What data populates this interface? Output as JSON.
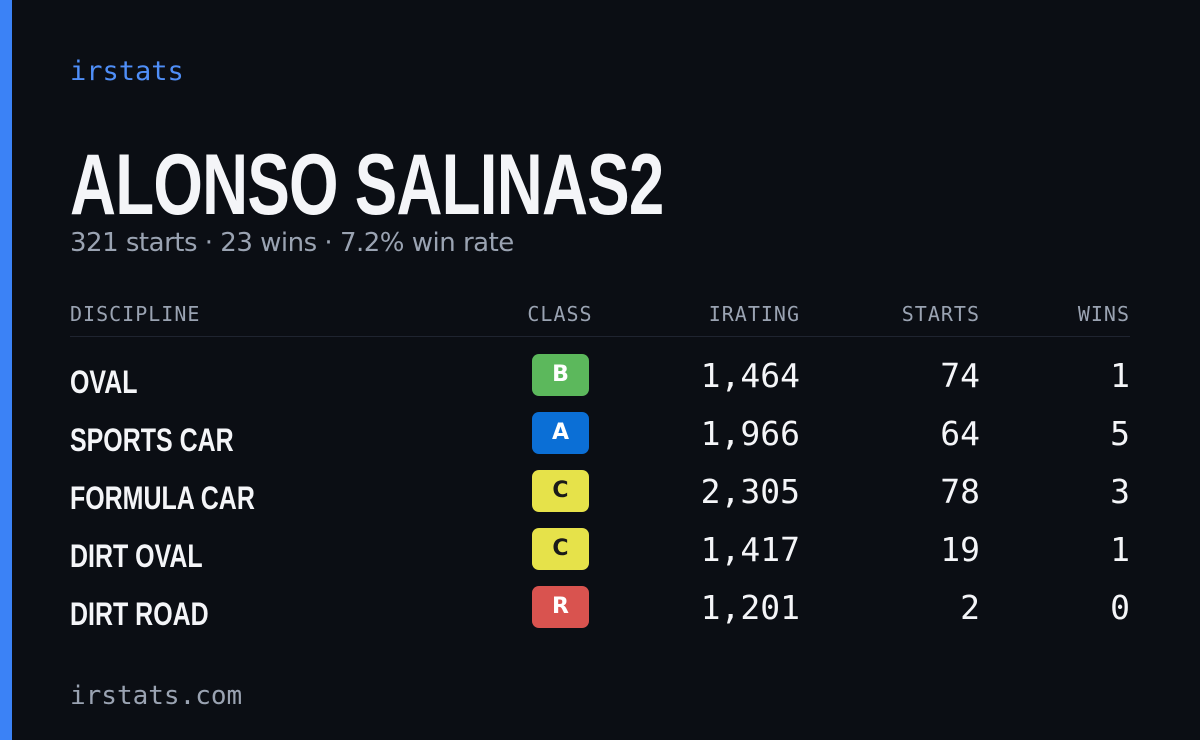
{
  "header": {
    "brand": "irstats",
    "title": "ALONSO SALINAS2",
    "subtitle": "321 starts · 23 wins · 7.2% win rate"
  },
  "table": {
    "columns": [
      "DISCIPLINE",
      "CLASS",
      "IRATING",
      "STARTS",
      "WINS"
    ],
    "rows": [
      {
        "discipline": "OVAL",
        "class": "B",
        "class_color": "#5cb85c",
        "irating": "1,464",
        "starts": "74",
        "wins": "1"
      },
      {
        "discipline": "SPORTS CAR",
        "class": "A",
        "class_color": "#0b6fd6",
        "irating": "1,966",
        "starts": "64",
        "wins": "5"
      },
      {
        "discipline": "FORMULA CAR",
        "class": "C",
        "class_color": "#e6e24a",
        "irating": "2,305",
        "starts": "78",
        "wins": "3"
      },
      {
        "discipline": "DIRT OVAL",
        "class": "C",
        "class_color": "#e6e24a",
        "irating": "1,417",
        "starts": "19",
        "wins": "1"
      },
      {
        "discipline": "DIRT ROAD",
        "class": "R",
        "class_color": "#d9534f",
        "irating": "1,201",
        "starts": "2",
        "wins": "0"
      }
    ]
  },
  "footer": {
    "url": "irstats.com"
  }
}
